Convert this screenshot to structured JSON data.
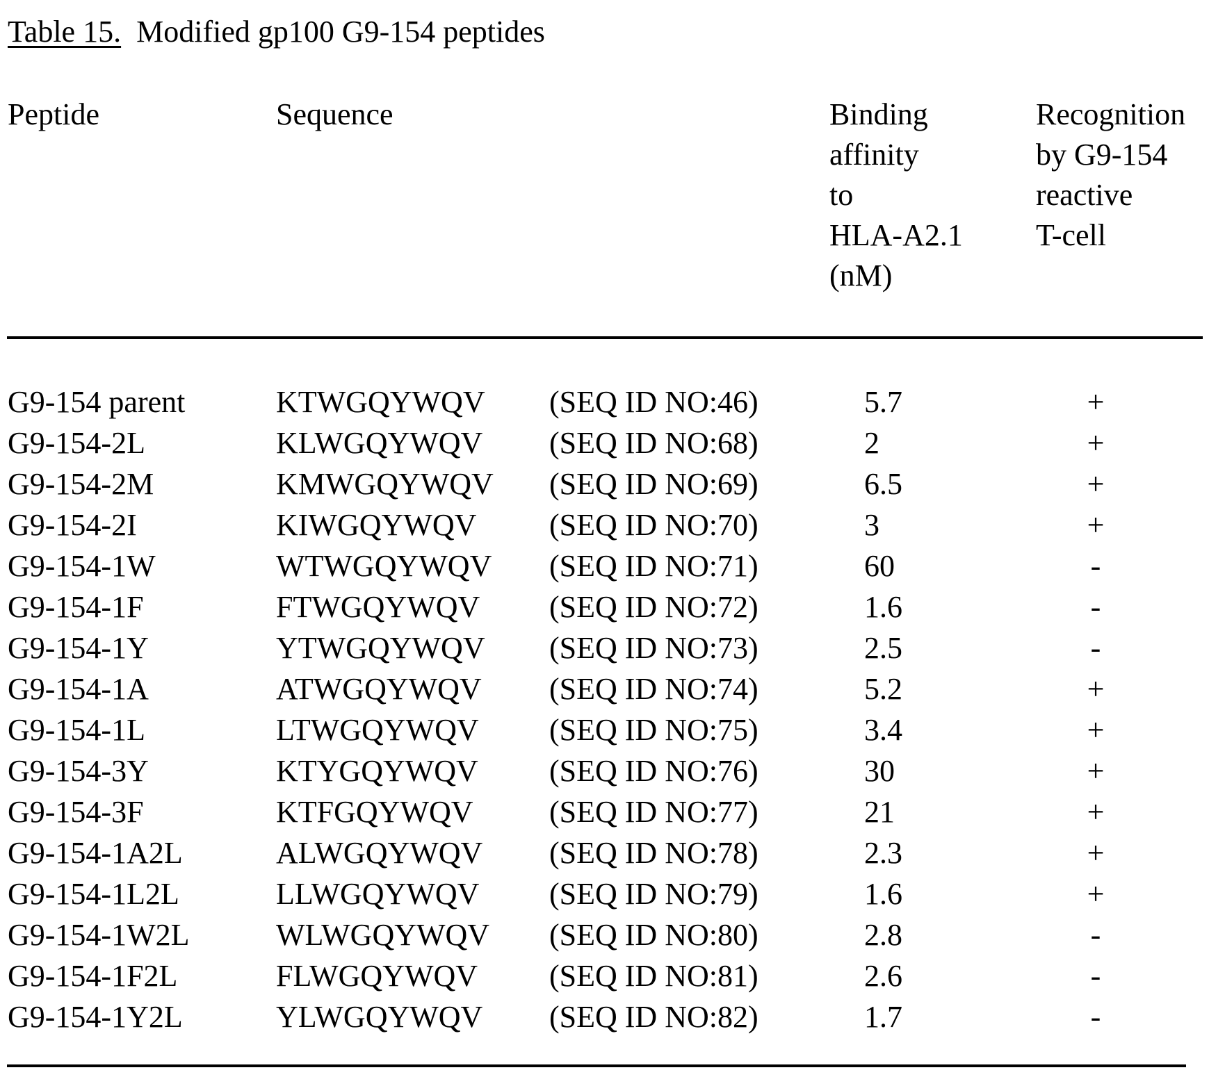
{
  "title": {
    "label": "Table 15.",
    "text": "Modified gp100 G9-154 peptides"
  },
  "headers": {
    "peptide": [
      "Peptide"
    ],
    "sequence": [
      "Sequence"
    ],
    "binding": [
      "Binding",
      "affinity",
      "to",
      "HLA-A2.1",
      "(nM)"
    ],
    "recognition": [
      "Recognition",
      "by G9-154",
      "reactive",
      "T-cell"
    ]
  },
  "rows": [
    {
      "peptide": "G9-154 parent",
      "sequence": "KTWGQYWQV",
      "seq_id": "(SEQ ID NO:46)",
      "binding": "5.7",
      "recognition": "+"
    },
    {
      "peptide": "G9-154-2L",
      "sequence": "KLWGQYWQV",
      "seq_id": "(SEQ ID NO:68)",
      "binding": "2",
      "recognition": "+"
    },
    {
      "peptide": "G9-154-2M",
      "sequence": "KMWGQYWQV",
      "seq_id": "(SEQ ID NO:69)",
      "binding": "6.5",
      "recognition": "+"
    },
    {
      "peptide": "G9-154-2I",
      "sequence": "KIWGQYWQV",
      "seq_id": "(SEQ ID NO:70)",
      "binding": "3",
      "recognition": "+"
    },
    {
      "peptide": "G9-154-1W",
      "sequence": "WTWGQYWQV",
      "seq_id": "(SEQ ID NO:71)",
      "binding": "60",
      "recognition": "-"
    },
    {
      "peptide": "G9-154-1F",
      "sequence": "FTWGQYWQV",
      "seq_id": "(SEQ ID NO:72)",
      "binding": "1.6",
      "recognition": "-"
    },
    {
      "peptide": "G9-154-1Y",
      "sequence": "YTWGQYWQV",
      "seq_id": "(SEQ ID NO:73)",
      "binding": "2.5",
      "recognition": "-"
    },
    {
      "peptide": "G9-154-1A",
      "sequence": "ATWGQYWQV",
      "seq_id": "(SEQ ID NO:74)",
      "binding": "5.2",
      "recognition": "+"
    },
    {
      "peptide": "G9-154-1L",
      "sequence": "LTWGQYWQV",
      "seq_id": "(SEQ ID NO:75)",
      "binding": "3.4",
      "recognition": "+"
    },
    {
      "peptide": "G9-154-3Y",
      "sequence": "KTYGQYWQV",
      "seq_id": "(SEQ ID NO:76)",
      "binding": "30",
      "recognition": "+"
    },
    {
      "peptide": "G9-154-3F",
      "sequence": "KTFGQYWQV",
      "seq_id": "(SEQ ID NO:77)",
      "binding": "21",
      "recognition": "+"
    },
    {
      "peptide": "G9-154-1A2L",
      "sequence": "ALWGQYWQV",
      "seq_id": "(SEQ ID NO:78)",
      "binding": "2.3",
      "recognition": "+"
    },
    {
      "peptide": "G9-154-1L2L",
      "sequence": "LLWGQYWQV",
      "seq_id": "(SEQ ID NO:79)",
      "binding": "1.6",
      "recognition": "+"
    },
    {
      "peptide": "G9-154-1W2L",
      "sequence": "WLWGQYWQV",
      "seq_id": "(SEQ ID NO:80)",
      "binding": "2.8",
      "recognition": "-"
    },
    {
      "peptide": "G9-154-1F2L",
      "sequence": "FLWGQYWQV",
      "seq_id": "(SEQ ID NO:81)",
      "binding": "2.6",
      "recognition": "-"
    },
    {
      "peptide": "G9-154-1Y2L",
      "sequence": "YLWGQYWQV",
      "seq_id": "(SEQ ID NO:82)",
      "binding": "1.7",
      "recognition": "-"
    }
  ]
}
